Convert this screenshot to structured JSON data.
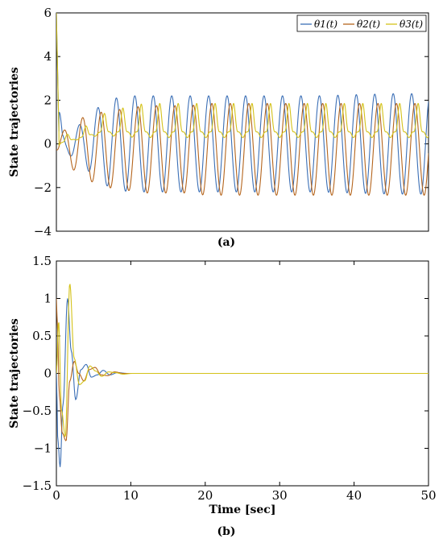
{
  "chart_data": [
    {
      "panel": "(a)",
      "type": "line",
      "xlabel": "",
      "ylabel": "State trajectories",
      "xlim": [
        0,
        50
      ],
      "ylim": [
        -4,
        6
      ],
      "x_ticks": [],
      "y_ticks": [
        -4,
        -2,
        0,
        2,
        4,
        6
      ],
      "y_tick_labels": [
        "−4",
        "−2",
        "0",
        "2",
        "4",
        "6"
      ],
      "grid": false,
      "legend": "top-right",
      "legend_entries": [
        "θ1(t)",
        "θ2(t)",
        "θ3(t)"
      ],
      "series": [
        {
          "name": "θ1(t)",
          "color": "#3b6fb6",
          "description": "starts at 6, settles into sustained oscillation growing to about ±2.2, period ≈ 2.5 s",
          "x": [
            0,
            0.3,
            0.8,
            1.5,
            2.3,
            3.2,
            4.5,
            6,
            8,
            10,
            12,
            14,
            16,
            18,
            20,
            25,
            30,
            35,
            40,
            45,
            50
          ],
          "peak_amplitude": [
            6,
            2.0,
            0.5,
            0.4,
            0.7,
            0.9,
            1.3,
            1.8,
            2.1,
            2.2,
            2.2,
            2.2,
            2.2,
            2.2,
            2.2,
            2.2,
            2.2,
            2.2,
            2.25,
            2.3,
            2.3
          ]
        },
        {
          "name": "θ2(t)",
          "color": "#b5651d",
          "description": "sustained oscillation around −0.3, amplitude growing to about ±2.1",
          "peak_amplitude": [
            0.3,
            0.5,
            0.6,
            0.8,
            1.1,
            1.3,
            1.5,
            1.7,
            1.8,
            1.9,
            2.0,
            2.0,
            2.0,
            2.0,
            2.1,
            2.1,
            2.1,
            2.1,
            2.1,
            2.1,
            2.1
          ]
        },
        {
          "name": "θ3(t)",
          "color": "#d4c21a",
          "description": "starts at 6, small oscillation around 0.5 with amplitude ~1",
          "peak_amplitude": [
            6,
            0.5,
            0.4,
            0.3,
            0.3,
            0.4,
            0.5,
            0.8,
            1.0,
            1.2,
            1.3,
            1.3,
            1.3,
            1.3,
            1.3,
            1.3,
            1.3,
            1.3,
            1.3,
            1.3,
            1.3
          ]
        }
      ]
    },
    {
      "panel": "(b)",
      "type": "line",
      "xlabel": "Time [sec]",
      "ylabel": "State trajectories",
      "xlim": [
        0,
        50
      ],
      "ylim": [
        -1.5,
        1.5
      ],
      "x_ticks": [
        0,
        10,
        20,
        30,
        40,
        50
      ],
      "x_tick_labels": [
        "0",
        "10",
        "20",
        "30",
        "40",
        "50"
      ],
      "y_ticks": [
        -1.5,
        -1,
        -0.5,
        0,
        0.5,
        1,
        1.5
      ],
      "y_tick_labels": [
        "−1.5",
        "−1",
        "−0.5",
        "0",
        "0.5",
        "1",
        "1.5"
      ],
      "grid": false,
      "legend": "none",
      "series": [
        {
          "name": "θ1(t)",
          "color": "#3b6fb6",
          "x": [
            0,
            0.2,
            0.5,
            0.9,
            1.5,
            2.0,
            2.6,
            3.3,
            4.0,
            4.7,
            5.5,
            6.3,
            7.2,
            8.2,
            9.5,
            11,
            13,
            50
          ],
          "y": [
            0.0,
            -0.9,
            -1.25,
            -0.4,
            1.0,
            0.3,
            -0.35,
            0.05,
            0.12,
            -0.05,
            -0.02,
            0.04,
            -0.02,
            0.01,
            0.0,
            0.0,
            0.0,
            0.0
          ]
        },
        {
          "name": "θ2(t)",
          "color": "#b5651d",
          "x": [
            0,
            0.15,
            0.4,
            0.8,
            1.3,
            1.8,
            2.4,
            3.0,
            3.7,
            4.4,
            5.2,
            6.0,
            6.9,
            7.8,
            9.0,
            10.5,
            12.5,
            50
          ],
          "y": [
            1.0,
            0.6,
            -0.3,
            -0.8,
            -0.9,
            -0.1,
            0.16,
            0.0,
            -0.1,
            0.05,
            0.08,
            -0.02,
            -0.03,
            0.02,
            0.0,
            0.0,
            0.0,
            0.0
          ]
        },
        {
          "name": "θ3(t)",
          "color": "#d4c21a",
          "x": [
            0,
            0.3,
            0.7,
            1.2,
            1.8,
            2.4,
            3.1,
            3.8,
            4.5,
            5.3,
            6.1,
            7.0,
            7.9,
            9.0,
            10.2,
            12,
            14,
            50
          ],
          "y": [
            0.0,
            0.7,
            -0.5,
            -0.85,
            1.2,
            0.2,
            -0.15,
            -0.1,
            0.1,
            0.03,
            -0.04,
            0.02,
            0.01,
            -0.01,
            0.0,
            0.0,
            0.0,
            0.0
          ]
        }
      ]
    }
  ]
}
